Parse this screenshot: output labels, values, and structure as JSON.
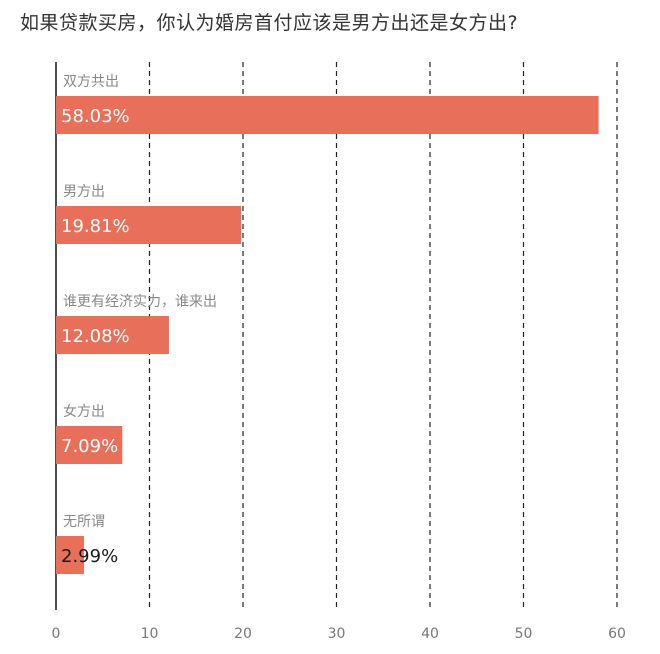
{
  "chart_data": {
    "type": "bar",
    "orientation": "horizontal",
    "title": "如果贷款买房，你认为婚房首付应该是男方出还是女方出?",
    "categories": [
      "双方共出",
      "男方出",
      "谁更有经济实力，谁来出",
      "女方出",
      "无所谓"
    ],
    "values": [
      58.03,
      19.81,
      12.08,
      7.09,
      2.99
    ],
    "value_labels": [
      "58.03%",
      "19.81%",
      "12.08%",
      "7.09%",
      "2.99%"
    ],
    "xlim": [
      0,
      60
    ],
    "xticks": [
      "0",
      "10",
      "20",
      "30",
      "40",
      "50",
      "60"
    ],
    "grid": "vertical dashed",
    "legend": "none",
    "colors": {
      "bar": "#e8705a",
      "label_inside": "#ffffff",
      "label_outside": "#1a1a1a",
      "category_text": "#888888",
      "tick_text": "#777777",
      "grid": "#222222",
      "axis": "#222222"
    }
  }
}
